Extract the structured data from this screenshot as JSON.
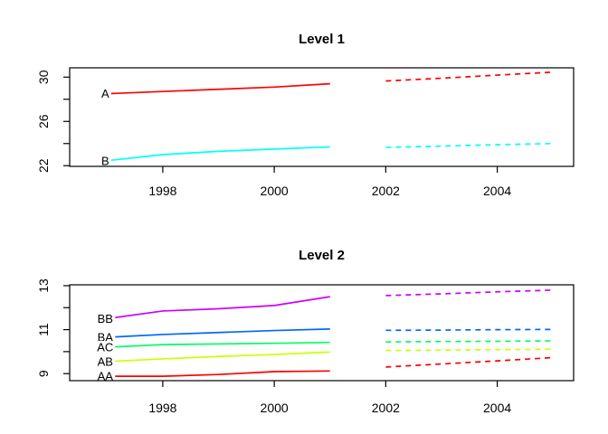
{
  "figure": {
    "background": "#FFFFFF",
    "axis_color": "#000000",
    "text_color": "#000000"
  },
  "chart_data": [
    {
      "type": "line",
      "title": "Level 1",
      "xlabel": "",
      "ylabel": "",
      "grid": false,
      "legend": "none",
      "xlim": [
        1996.33,
        2005.37
      ],
      "ylim": [
        21.94,
        30.84
      ],
      "x_ticks": [
        1998,
        2000,
        2002,
        2004
      ],
      "y_ticks": [
        22,
        24,
        26,
        28,
        30
      ],
      "y_tick_labels": [
        "22",
        "",
        "26",
        "",
        "30"
      ],
      "x_solid": [
        1997,
        1998,
        1999,
        2000,
        2001
      ],
      "x_dashed": [
        2002,
        2003,
        2004,
        2005
      ],
      "series": [
        {
          "name": "A",
          "color": "#FF0000",
          "line_style_solid": "solid",
          "line_style_dashed": "dashed",
          "solid_values": [
            28.5,
            28.7,
            28.9,
            29.1,
            29.4
          ],
          "dashed_values": [
            29.65,
            29.9,
            30.18,
            30.45
          ]
        },
        {
          "name": "B",
          "color": "#00FFFF",
          "line_style_solid": "solid",
          "line_style_dashed": "dashed",
          "solid_values": [
            22.45,
            23.0,
            23.3,
            23.5,
            23.7
          ],
          "dashed_values": [
            23.65,
            23.77,
            23.9,
            24.0
          ]
        }
      ]
    },
    {
      "type": "line",
      "title": "Level 2",
      "xlabel": "",
      "ylabel": "",
      "grid": false,
      "legend": "none",
      "xlim": [
        1996.33,
        2005.37
      ],
      "ylim": [
        8.68,
        13.04
      ],
      "x_ticks": [
        1998,
        2000,
        2002,
        2004
      ],
      "y_ticks": [
        9,
        10,
        11,
        12,
        13
      ],
      "y_tick_labels": [
        "9",
        "",
        "11",
        "",
        "13"
      ],
      "x_solid": [
        1997,
        1998,
        1999,
        2000,
        2001
      ],
      "x_dashed": [
        2002,
        2003,
        2004,
        2005
      ],
      "series": [
        {
          "name": "BB",
          "color": "#CC00FF",
          "line_style_solid": "solid",
          "line_style_dashed": "dashed",
          "solid_values": [
            11.5,
            11.85,
            11.95,
            12.1,
            12.5
          ],
          "dashed_values": [
            12.55,
            12.63,
            12.72,
            12.8
          ]
        },
        {
          "name": "BA",
          "color": "#0066FF",
          "line_style_solid": "solid",
          "line_style_dashed": "dashed",
          "solid_values": [
            10.65,
            10.78,
            10.87,
            10.96,
            11.03
          ],
          "dashed_values": [
            10.97,
            10.98,
            11.0,
            11.01
          ]
        },
        {
          "name": "AC",
          "color": "#00FF66",
          "line_style_solid": "solid",
          "line_style_dashed": "dashed",
          "solid_values": [
            10.2,
            10.32,
            10.35,
            10.38,
            10.42
          ],
          "dashed_values": [
            10.44,
            10.46,
            10.47,
            10.49
          ]
        },
        {
          "name": "AB",
          "color": "#CCFF00",
          "line_style_solid": "solid",
          "line_style_dashed": "dashed",
          "solid_values": [
            9.55,
            9.67,
            9.78,
            9.87,
            9.98
          ],
          "dashed_values": [
            10.05,
            10.07,
            10.09,
            10.11
          ]
        },
        {
          "name": "AA",
          "color": "#FF0000",
          "line_style_solid": "solid",
          "line_style_dashed": "dashed",
          "solid_values": [
            8.88,
            8.88,
            8.96,
            9.09,
            9.12
          ],
          "dashed_values": [
            9.3,
            9.44,
            9.58,
            9.73
          ]
        }
      ]
    }
  ]
}
